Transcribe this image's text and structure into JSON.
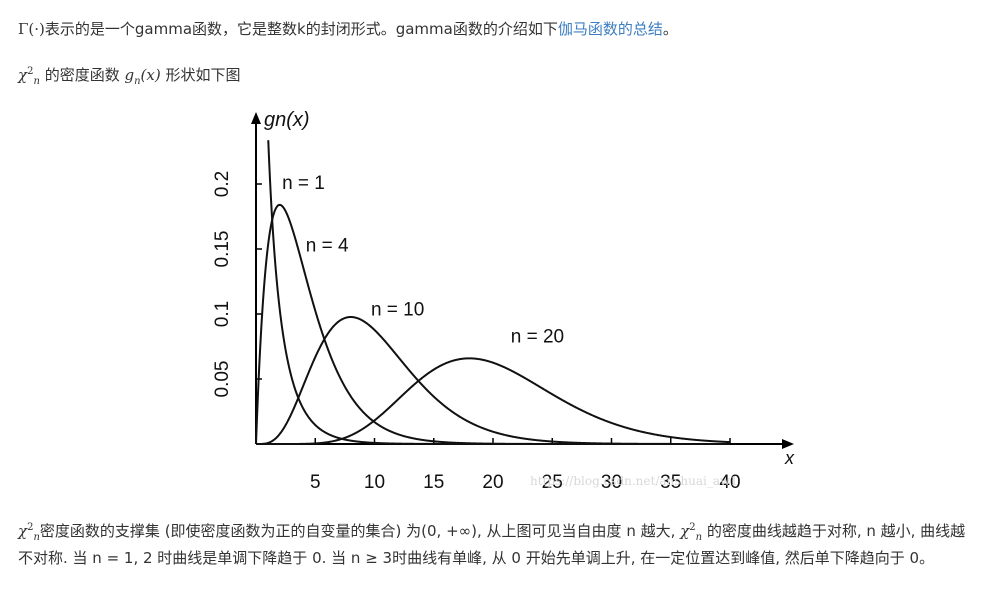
{
  "line1": {
    "gamma_symbol": "Γ(·)",
    "text": "表示的是一个gamma函数，它是整数k的封闭形式。gamma函数的介绍如下",
    "link_text": "伽马函数的总结",
    "end": "。"
  },
  "line2": {
    "chi_symbol": "χ",
    "chi_sup": "2",
    "chi_sub": "n",
    "text_a": " 的密度函数 ",
    "func": "g",
    "func_sub": "n",
    "func_arg": "(x)",
    "text_b": " 形状如下图"
  },
  "chart_data": {
    "type": "line",
    "ylabel": "gn(x)",
    "xlabel": "x",
    "xlim": [
      0,
      40
    ],
    "ylim": [
      0,
      0.25
    ],
    "x_ticks": [
      5,
      10,
      15,
      20,
      25,
      30,
      35,
      40
    ],
    "y_ticks": [
      0.05,
      0.1,
      0.15,
      0.2
    ],
    "y_tick_labels": [
      "0.05",
      "0.1",
      "0.15",
      "0.2"
    ],
    "series": [
      {
        "name": "n = 1",
        "dof": 1
      },
      {
        "name": "n = 4",
        "dof": 4
      },
      {
        "name": "n = 10",
        "dof": 10
      },
      {
        "name": "n = 20",
        "dof": 20
      }
    ],
    "watermark": "https://blog.csdn.net/anshuai_aw1"
  },
  "para3": {
    "chi_symbol": "χ",
    "chi_sup": "2",
    "chi_sub": "n",
    "text1": "密度函数的支撑集 (即使密度函数为正的自变量的集合) 为(0, +∞), 从上图可见当自由度 n 越大, ",
    "chi2_symbol": "χ",
    "chi2_sup": "2",
    "chi2_sub": "n",
    "text2": " 的密度曲线越趋于对称, n 越小, 曲线越不对称. 当 n = 1, 2 时曲线是单调下降趋于 0. 当 n ≥ 3时曲线有单峰, 从 0 开始先单调上升, 在一定位置达到峰值, 然后单下降趋向于 0。"
  }
}
